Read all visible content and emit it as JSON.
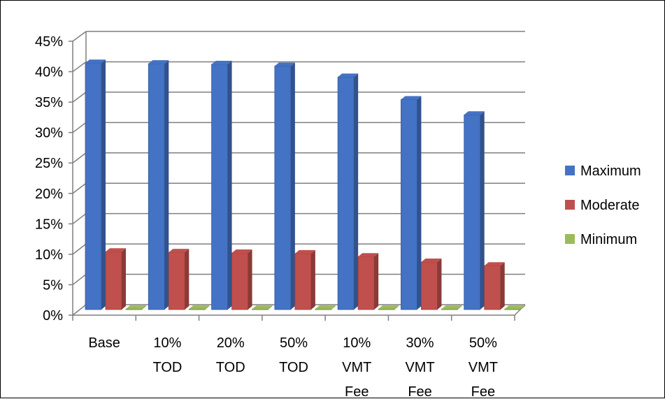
{
  "chart_data": {
    "type": "bar",
    "title": "",
    "xlabel": "",
    "ylabel": "",
    "ylim": [
      0,
      45
    ],
    "y_ticks": [
      "0%",
      "5%",
      "10%",
      "15%",
      "20%",
      "25%",
      "30%",
      "35%",
      "40%",
      "45%"
    ],
    "y_tick_values": [
      0,
      5,
      10,
      15,
      20,
      25,
      30,
      35,
      40,
      45
    ],
    "grid": true,
    "legend_position": "right",
    "categories": [
      [
        "Base"
      ],
      [
        "10%",
        "TOD"
      ],
      [
        "20%",
        "TOD"
      ],
      [
        "50%",
        "TOD"
      ],
      [
        "10%",
        "VMT",
        "Fee"
      ],
      [
        "30%",
        "VMT",
        "Fee"
      ],
      [
        "50%",
        "VMT",
        "Fee"
      ]
    ],
    "series": [
      {
        "name": "Maximum",
        "color": "#4472C4",
        "values": [
          40.5,
          40.4,
          40.3,
          40.0,
          38.2,
          34.5,
          32.0
        ]
      },
      {
        "name": "Moderate",
        "color": "#C0504D",
        "values": [
          9.5,
          9.4,
          9.3,
          9.2,
          8.7,
          7.8,
          7.2
        ]
      },
      {
        "name": "Minimum",
        "color": "#9BBB59",
        "values": [
          0.1,
          0.1,
          0.1,
          0.1,
          0.1,
          0.1,
          0.1
        ]
      }
    ]
  }
}
